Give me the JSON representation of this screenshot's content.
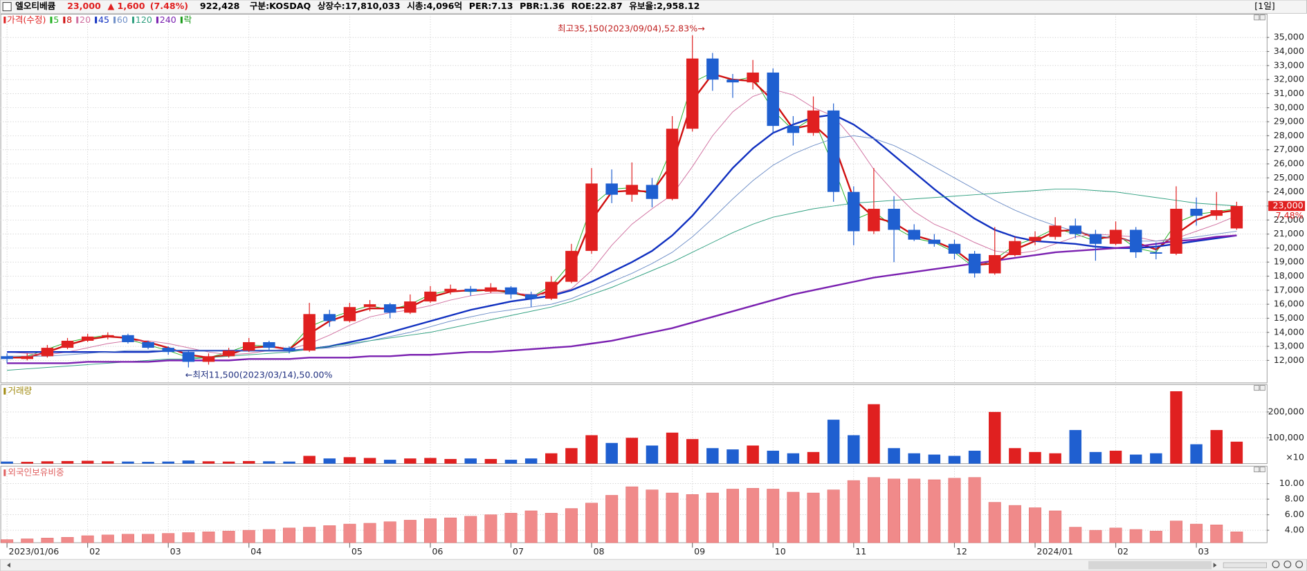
{
  "header": {
    "name": "엘오티베큠",
    "price": "23,000",
    "change": "▲ 1,600",
    "change_pct": "(7.48%)",
    "volume": "922,428",
    "items": [
      "구분:KOSDAQ",
      "상장수:17,810,033",
      "시총:4,096억",
      "PER:7.13",
      "PBR:1.36",
      "ROE:22.87",
      "유보율:2,958.12"
    ],
    "period": "[1일]"
  },
  "chart_data": [
    {
      "type": "candlestick",
      "name": "가격(수정)",
      "price_color": "#e02020",
      "up_color": "#e02020",
      "down_color": "#1f5fd0",
      "ex_rights": "락",
      "ex_rights_color": "#1a9a1a",
      "grid": true,
      "categories": [
        "2023/01/06",
        null,
        null,
        null,
        "02",
        null,
        null,
        null,
        "03",
        null,
        null,
        null,
        "04",
        null,
        null,
        null,
        null,
        "05",
        null,
        null,
        null,
        "06",
        null,
        null,
        null,
        "07",
        null,
        null,
        null,
        "08",
        null,
        null,
        null,
        null,
        "09",
        null,
        null,
        null,
        "10",
        null,
        null,
        null,
        "11",
        null,
        null,
        null,
        null,
        "12",
        null,
        null,
        null,
        "2024/01",
        null,
        null,
        null,
        "02",
        null,
        null,
        null,
        "03",
        null,
        null
      ],
      "open": [
        12300,
        12100,
        12300,
        12900,
        13400,
        13700,
        13800,
        13300,
        12900,
        12600,
        11900,
        12300,
        12700,
        13300,
        12900,
        12700,
        15300,
        14800,
        15800,
        16000,
        15400,
        16200,
        16900,
        17100,
        16900,
        17200,
        16700,
        16400,
        17600,
        19800,
        24600,
        23800,
        24500,
        23500,
        28500,
        33500,
        32000,
        31800,
        32500,
        28700,
        28200,
        29800,
        24000,
        21200,
        22800,
        21300,
        20600,
        20300,
        19600,
        18200,
        19500,
        20500,
        20800,
        21600,
        21000,
        20300,
        21300,
        19700,
        19600,
        22800,
        22300,
        21400
      ],
      "high": [
        12500,
        12500,
        13100,
        13600,
        13900,
        14000,
        13900,
        13400,
        13000,
        12700,
        12500,
        12900,
        13600,
        13400,
        13000,
        16100,
        15600,
        16100,
        16300,
        16100,
        16700,
        17300,
        17400,
        17300,
        17500,
        17300,
        16900,
        18000,
        20300,
        25700,
        25600,
        26100,
        25000,
        29400,
        35150,
        33900,
        32400,
        33400,
        32800,
        29400,
        30800,
        30300,
        24400,
        25700,
        23700,
        21700,
        21000,
        20600,
        19800,
        21500,
        20800,
        21200,
        22200,
        22100,
        21300,
        21900,
        21500,
        20400,
        24400,
        23600,
        24000,
        23300
      ],
      "low": [
        11800,
        12000,
        12200,
        12800,
        13300,
        13500,
        13200,
        12800,
        12400,
        11500,
        11700,
        12200,
        12600,
        12700,
        12500,
        12600,
        14400,
        14700,
        15500,
        15000,
        15300,
        16100,
        16700,
        16600,
        16800,
        16400,
        15800,
        16300,
        17500,
        19600,
        23200,
        23300,
        22900,
        23400,
        28300,
        31200,
        30700,
        31300,
        28200,
        27300,
        28000,
        23300,
        20200,
        21000,
        19000,
        20500,
        20100,
        19200,
        17900,
        18100,
        19400,
        20200,
        20600,
        20700,
        19100,
        20200,
        19300,
        19200,
        19500,
        21600,
        22000,
        21300
      ],
      "close": [
        12100,
        12300,
        12900,
        13400,
        13700,
        13800,
        13300,
        12900,
        12600,
        11900,
        12300,
        12700,
        13300,
        12900,
        12700,
        15300,
        14800,
        15800,
        16000,
        15400,
        16200,
        16900,
        17100,
        16900,
        17200,
        16700,
        16400,
        17600,
        19800,
        24600,
        23800,
        24500,
        23500,
        28500,
        33500,
        32000,
        31800,
        32500,
        28700,
        28200,
        29800,
        24000,
        21200,
        22800,
        21300,
        20600,
        20300,
        19600,
        18200,
        19500,
        20500,
        20800,
        21600,
        21000,
        20300,
        21300,
        19700,
        19600,
        22800,
        22300,
        22700,
        23000
      ],
      "series": [
        {
          "name": "5",
          "color": "#22b022",
          "width": 0.8,
          "values": [
            12200,
            12300,
            12800,
            13300,
            13600,
            13800,
            13500,
            13100,
            12700,
            12200,
            12200,
            12600,
            13100,
            13000,
            12800,
            14400,
            15000,
            15500,
            15900,
            15600,
            16000,
            16700,
            17000,
            16900,
            17000,
            16800,
            16500,
            17300,
            19000,
            23000,
            24200,
            24300,
            23800,
            27200,
            31800,
            32500,
            31900,
            32200,
            29800,
            28400,
            29300,
            25800,
            22000,
            22600,
            21500,
            20700,
            20400,
            19700,
            18600,
            19200,
            20200,
            20700,
            21400,
            21000,
            20500,
            21000,
            20000,
            19700,
            21800,
            22400,
            22600,
            22800
          ]
        },
        {
          "name": "8",
          "color": "#d01010",
          "width": 2,
          "values": [
            12200,
            12200,
            12600,
            13100,
            13500,
            13700,
            13600,
            13300,
            12900,
            12400,
            12200,
            12400,
            12900,
            13000,
            12800,
            13900,
            14800,
            15300,
            15700,
            15700,
            15800,
            16500,
            16900,
            17000,
            17000,
            16900,
            16500,
            17000,
            18500,
            22000,
            24000,
            24100,
            24000,
            26000,
            30500,
            32400,
            32000,
            31900,
            30500,
            28500,
            28800,
            27500,
            23500,
            22200,
            21800,
            20900,
            20500,
            19900,
            18800,
            18900,
            19900,
            20500,
            21200,
            21300,
            20700,
            20800,
            20400,
            19900,
            21000,
            22000,
            22500,
            22700
          ]
        },
        {
          "name": "20",
          "color": "#d070a0",
          "width": 0.8,
          "values": [
            12600,
            12500,
            12400,
            12600,
            12900,
            13200,
            13400,
            13400,
            13200,
            12900,
            12600,
            12400,
            12500,
            12700,
            12800,
            13200,
            13800,
            14500,
            15100,
            15400,
            15600,
            15900,
            16300,
            16600,
            16800,
            16800,
            16700,
            16700,
            17100,
            18400,
            20200,
            21700,
            22800,
            23800,
            25800,
            28000,
            29700,
            30800,
            31300,
            30900,
            30000,
            29400,
            27700,
            25600,
            24000,
            22600,
            21700,
            21100,
            20400,
            19800,
            19600,
            19800,
            20300,
            20800,
            21000,
            20900,
            20800,
            20500,
            20700,
            21200,
            21700,
            22300
          ]
        },
        {
          "name": "45",
          "color": "#1030c0",
          "width": 2,
          "values": [
            12600,
            12600,
            12600,
            12600,
            12600,
            12600,
            12600,
            12600,
            12700,
            12700,
            12700,
            12700,
            12700,
            12700,
            12700,
            12800,
            13000,
            13300,
            13600,
            14000,
            14400,
            14800,
            15200,
            15600,
            15900,
            16200,
            16400,
            16600,
            17000,
            17600,
            18300,
            19000,
            19800,
            20900,
            22300,
            24000,
            25700,
            27100,
            28200,
            28800,
            29300,
            29500,
            28800,
            27800,
            26600,
            25400,
            24200,
            23100,
            22100,
            21300,
            20800,
            20500,
            20400,
            20300,
            20100,
            20000,
            20000,
            20100,
            20300,
            20500,
            20700,
            20900
          ]
        },
        {
          "name": "60",
          "color": "#7090c8",
          "width": 0.8,
          "values": [
            12300,
            12300,
            12300,
            12400,
            12500,
            12600,
            12700,
            12700,
            12700,
            12700,
            12700,
            12700,
            12700,
            12700,
            12700,
            12800,
            12900,
            13100,
            13400,
            13700,
            14000,
            14400,
            14800,
            15100,
            15400,
            15600,
            15800,
            16000,
            16400,
            17000,
            17600,
            18200,
            18900,
            19700,
            20800,
            22100,
            23500,
            24800,
            25900,
            26700,
            27300,
            27800,
            28000,
            27800,
            27300,
            26600,
            25800,
            25000,
            24200,
            23400,
            22700,
            22100,
            21600,
            21200,
            20900,
            20700,
            20500,
            20500,
            20600,
            20800,
            21000,
            21200
          ]
        },
        {
          "name": "120",
          "color": "#30a080",
          "width": 0.8,
          "values": [
            11300,
            11400,
            11500,
            11600,
            11700,
            11800,
            11900,
            12000,
            12100,
            12100,
            12200,
            12300,
            12400,
            12500,
            12600,
            12800,
            13000,
            13200,
            13400,
            13600,
            13800,
            14000,
            14300,
            14600,
            14900,
            15200,
            15500,
            15800,
            16200,
            16700,
            17200,
            17800,
            18400,
            19000,
            19700,
            20400,
            21100,
            21700,
            22200,
            22500,
            22800,
            23000,
            23200,
            23300,
            23400,
            23500,
            23600,
            23700,
            23800,
            23900,
            24000,
            24100,
            24200,
            24200,
            24100,
            24000,
            23800,
            23600,
            23400,
            23200,
            23100,
            23000
          ]
        },
        {
          "name": "240",
          "color": "#7a20b0",
          "width": 2,
          "values": [
            11800,
            11800,
            11800,
            11800,
            11900,
            11900,
            11900,
            11900,
            12000,
            12000,
            12000,
            12000,
            12100,
            12100,
            12100,
            12200,
            12200,
            12200,
            12300,
            12300,
            12400,
            12400,
            12500,
            12600,
            12600,
            12700,
            12800,
            12900,
            13000,
            13200,
            13400,
            13700,
            14000,
            14300,
            14700,
            15100,
            15500,
            15900,
            16300,
            16700,
            17000,
            17300,
            17600,
            17900,
            18100,
            18300,
            18500,
            18700,
            18900,
            19100,
            19300,
            19500,
            19700,
            19800,
            19900,
            20000,
            20100,
            20300,
            20500,
            20600,
            20800,
            20900
          ]
        }
      ],
      "ylim": [
        10400,
        36660
      ],
      "yticks": [
        {
          "value": 12000,
          "label": "12,000"
        },
        {
          "value": 13000,
          "label": "13,000"
        },
        {
          "value": 14000,
          "label": "14,000"
        },
        {
          "value": 15000,
          "label": "15,000"
        },
        {
          "value": 16000,
          "label": "16,000"
        },
        {
          "value": 17000,
          "label": "17,000"
        },
        {
          "value": 18000,
          "label": "18,000"
        },
        {
          "value": 19000,
          "label": "19,000"
        },
        {
          "value": 20000,
          "label": "20,000"
        },
        {
          "value": 21000,
          "label": "21,000"
        },
        {
          "value": 22000,
          "label": "22,000"
        },
        {
          "value": 23000,
          "label": "23,000"
        },
        {
          "value": 24000,
          "label": "24,000"
        },
        {
          "value": 25000,
          "label": "25,000"
        },
        {
          "value": 26000,
          "label": "26,000"
        },
        {
          "value": 27000,
          "label": "27,000"
        },
        {
          "value": 28000,
          "label": "28,000"
        },
        {
          "value": 29000,
          "label": "29,000"
        },
        {
          "value": 30000,
          "label": "30,000"
        },
        {
          "value": 31000,
          "label": "31,000"
        },
        {
          "value": 32000,
          "label": "32,000"
        },
        {
          "value": 33000,
          "label": "33,000"
        },
        {
          "value": 34000,
          "label": "34,000"
        },
        {
          "value": 35000,
          "label": "35,000"
        }
      ],
      "max_label": "최고35,150(2023/09/04),52.83%→",
      "min_label": "←최저11,500(2023/03/14),50.00%",
      "price_tag_change": "7.48%"
    },
    {
      "type": "bar",
      "name": "거래량",
      "name_color": "#a08a10",
      "unit_label": "×10",
      "values": [
        8000,
        7000,
        9000,
        10000,
        11000,
        9000,
        8000,
        7000,
        8000,
        12000,
        9000,
        8000,
        10000,
        9000,
        8000,
        30000,
        20000,
        25000,
        22000,
        15000,
        20000,
        22000,
        18000,
        20000,
        18000,
        15000,
        20000,
        40000,
        60000,
        110000,
        80000,
        100000,
        70000,
        120000,
        95000,
        60000,
        55000,
        70000,
        50000,
        40000,
        45000,
        170000,
        110000,
        230000,
        60000,
        40000,
        35000,
        30000,
        50000,
        200000,
        60000,
        45000,
        40000,
        130000,
        45000,
        50000,
        35000,
        40000,
        280000,
        75000,
        130000,
        85000
      ],
      "ylim": [
        0,
        306000
      ],
      "yticks": [
        {
          "value": 100000,
          "label": "100,000"
        },
        {
          "value": 200000,
          "label": "200,000"
        }
      ]
    },
    {
      "type": "bar",
      "name": "외국인보유비중",
      "name_color": "#e06060",
      "color": "#f08a8a",
      "values": [
        2.8,
        2.9,
        3.0,
        3.1,
        3.3,
        3.4,
        3.5,
        3.5,
        3.6,
        3.7,
        3.8,
        3.9,
        4.0,
        4.1,
        4.3,
        4.4,
        4.6,
        4.8,
        4.9,
        5.1,
        5.3,
        5.5,
        5.6,
        5.8,
        6.0,
        6.2,
        6.5,
        6.2,
        6.8,
        7.5,
        8.5,
        9.6,
        9.2,
        8.8,
        8.6,
        8.8,
        9.3,
        9.4,
        9.3,
        8.9,
        8.8,
        9.2,
        10.4,
        10.8,
        10.6,
        10.6,
        10.5,
        10.7,
        10.8,
        7.6,
        7.2,
        6.9,
        6.5,
        4.4,
        4.0,
        4.3,
        4.1,
        3.9,
        5.2,
        4.8,
        4.7,
        3.8
      ],
      "ylim": [
        2.4,
        12.25
      ],
      "yticks": [
        {
          "value": 4,
          "label": "4.00"
        },
        {
          "value": 6,
          "label": "6.00"
        },
        {
          "value": 8,
          "label": "8.00"
        },
        {
          "value": 10,
          "label": "10.00"
        }
      ]
    }
  ]
}
